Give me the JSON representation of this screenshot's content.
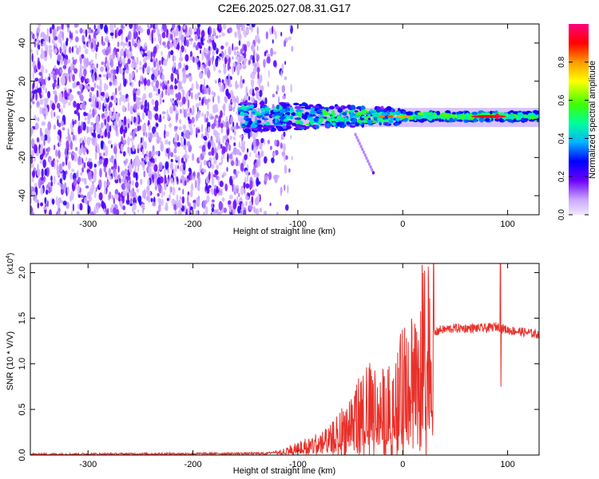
{
  "title": "C2E6.2025.027.08.31.G17",
  "chart_data": [
    {
      "type": "heatmap",
      "xlabel": "Height of straight line (km)",
      "ylabel": "Frequency (Hz)",
      "xlim": [
        -355,
        130
      ],
      "ylim": [
        -50,
        50
      ],
      "xticks": [
        -300,
        -200,
        -100,
        0,
        100
      ],
      "yticks": [
        -40,
        -20,
        0,
        20,
        40
      ],
      "colorbar": {
        "label": "Normalized spectral amplitude",
        "range": [
          0,
          1
        ],
        "ticks": [
          0.0,
          0.2,
          0.4,
          0.6,
          0.8
        ],
        "tick_labels": [
          "0.0",
          "0.2",
          "0.4",
          "0.6",
          "0.8"
        ]
      },
      "regions": [
        {
          "name": "noise",
          "x_range": [
            -355,
            -125
          ],
          "f_range": [
            -50,
            50
          ],
          "amplitude": [
            0.05,
            0.25
          ]
        },
        {
          "name": "signal_band",
          "x_range": [
            -155,
            130
          ],
          "center_hz": 1.5,
          "amplitude": [
            0.2,
            0.9
          ]
        },
        {
          "name": "strong_peak",
          "x": 90,
          "center_hz": 1.5,
          "amplitude": 0.95
        },
        {
          "name": "side_trail",
          "x_range": [
            -45,
            -28
          ],
          "f_range": [
            -28,
            -8
          ],
          "amplitude": 0.25
        }
      ]
    },
    {
      "type": "line",
      "series": [
        {
          "name": "SNR",
          "color": "#e8302a"
        }
      ],
      "xlabel": "Height of straight line (km)",
      "ylabel": "SNR (10 * V/V)",
      "y_multiplier_label": "(x10",
      "y_multiplier_exp": "4",
      "y_multiplier_close": ")",
      "xlim": [
        -355,
        130
      ],
      "ylim": [
        0,
        2.1
      ],
      "xticks": [
        -300,
        -200,
        -100,
        0,
        100
      ],
      "yticks": [
        0.0,
        0.5,
        1.0,
        1.5,
        2.0
      ],
      "ytick_labels": [
        "0.0",
        "0.5",
        "1.0",
        "1.5",
        "2.0"
      ],
      "profile": [
        [
          -355,
          0.01
        ],
        [
          -130,
          0.02
        ],
        [
          -110,
          0.06
        ],
        [
          -90,
          0.12
        ],
        [
          -70,
          0.18
        ],
        [
          -55,
          0.35
        ],
        [
          -45,
          0.5
        ],
        [
          -30,
          0.6
        ],
        [
          -15,
          0.55
        ],
        [
          -5,
          0.7
        ],
        [
          5,
          0.95
        ],
        [
          15,
          1.2
        ],
        [
          25,
          1.3
        ],
        [
          35,
          1.38
        ],
        [
          50,
          1.4
        ],
        [
          80,
          1.4
        ],
        [
          90,
          1.42
        ],
        [
          100,
          1.38
        ],
        [
          120,
          1.35
        ],
        [
          130,
          1.33
        ]
      ],
      "spikes": [
        {
          "x": 93,
          "max": 2.1,
          "min": 0.75
        }
      ]
    }
  ]
}
